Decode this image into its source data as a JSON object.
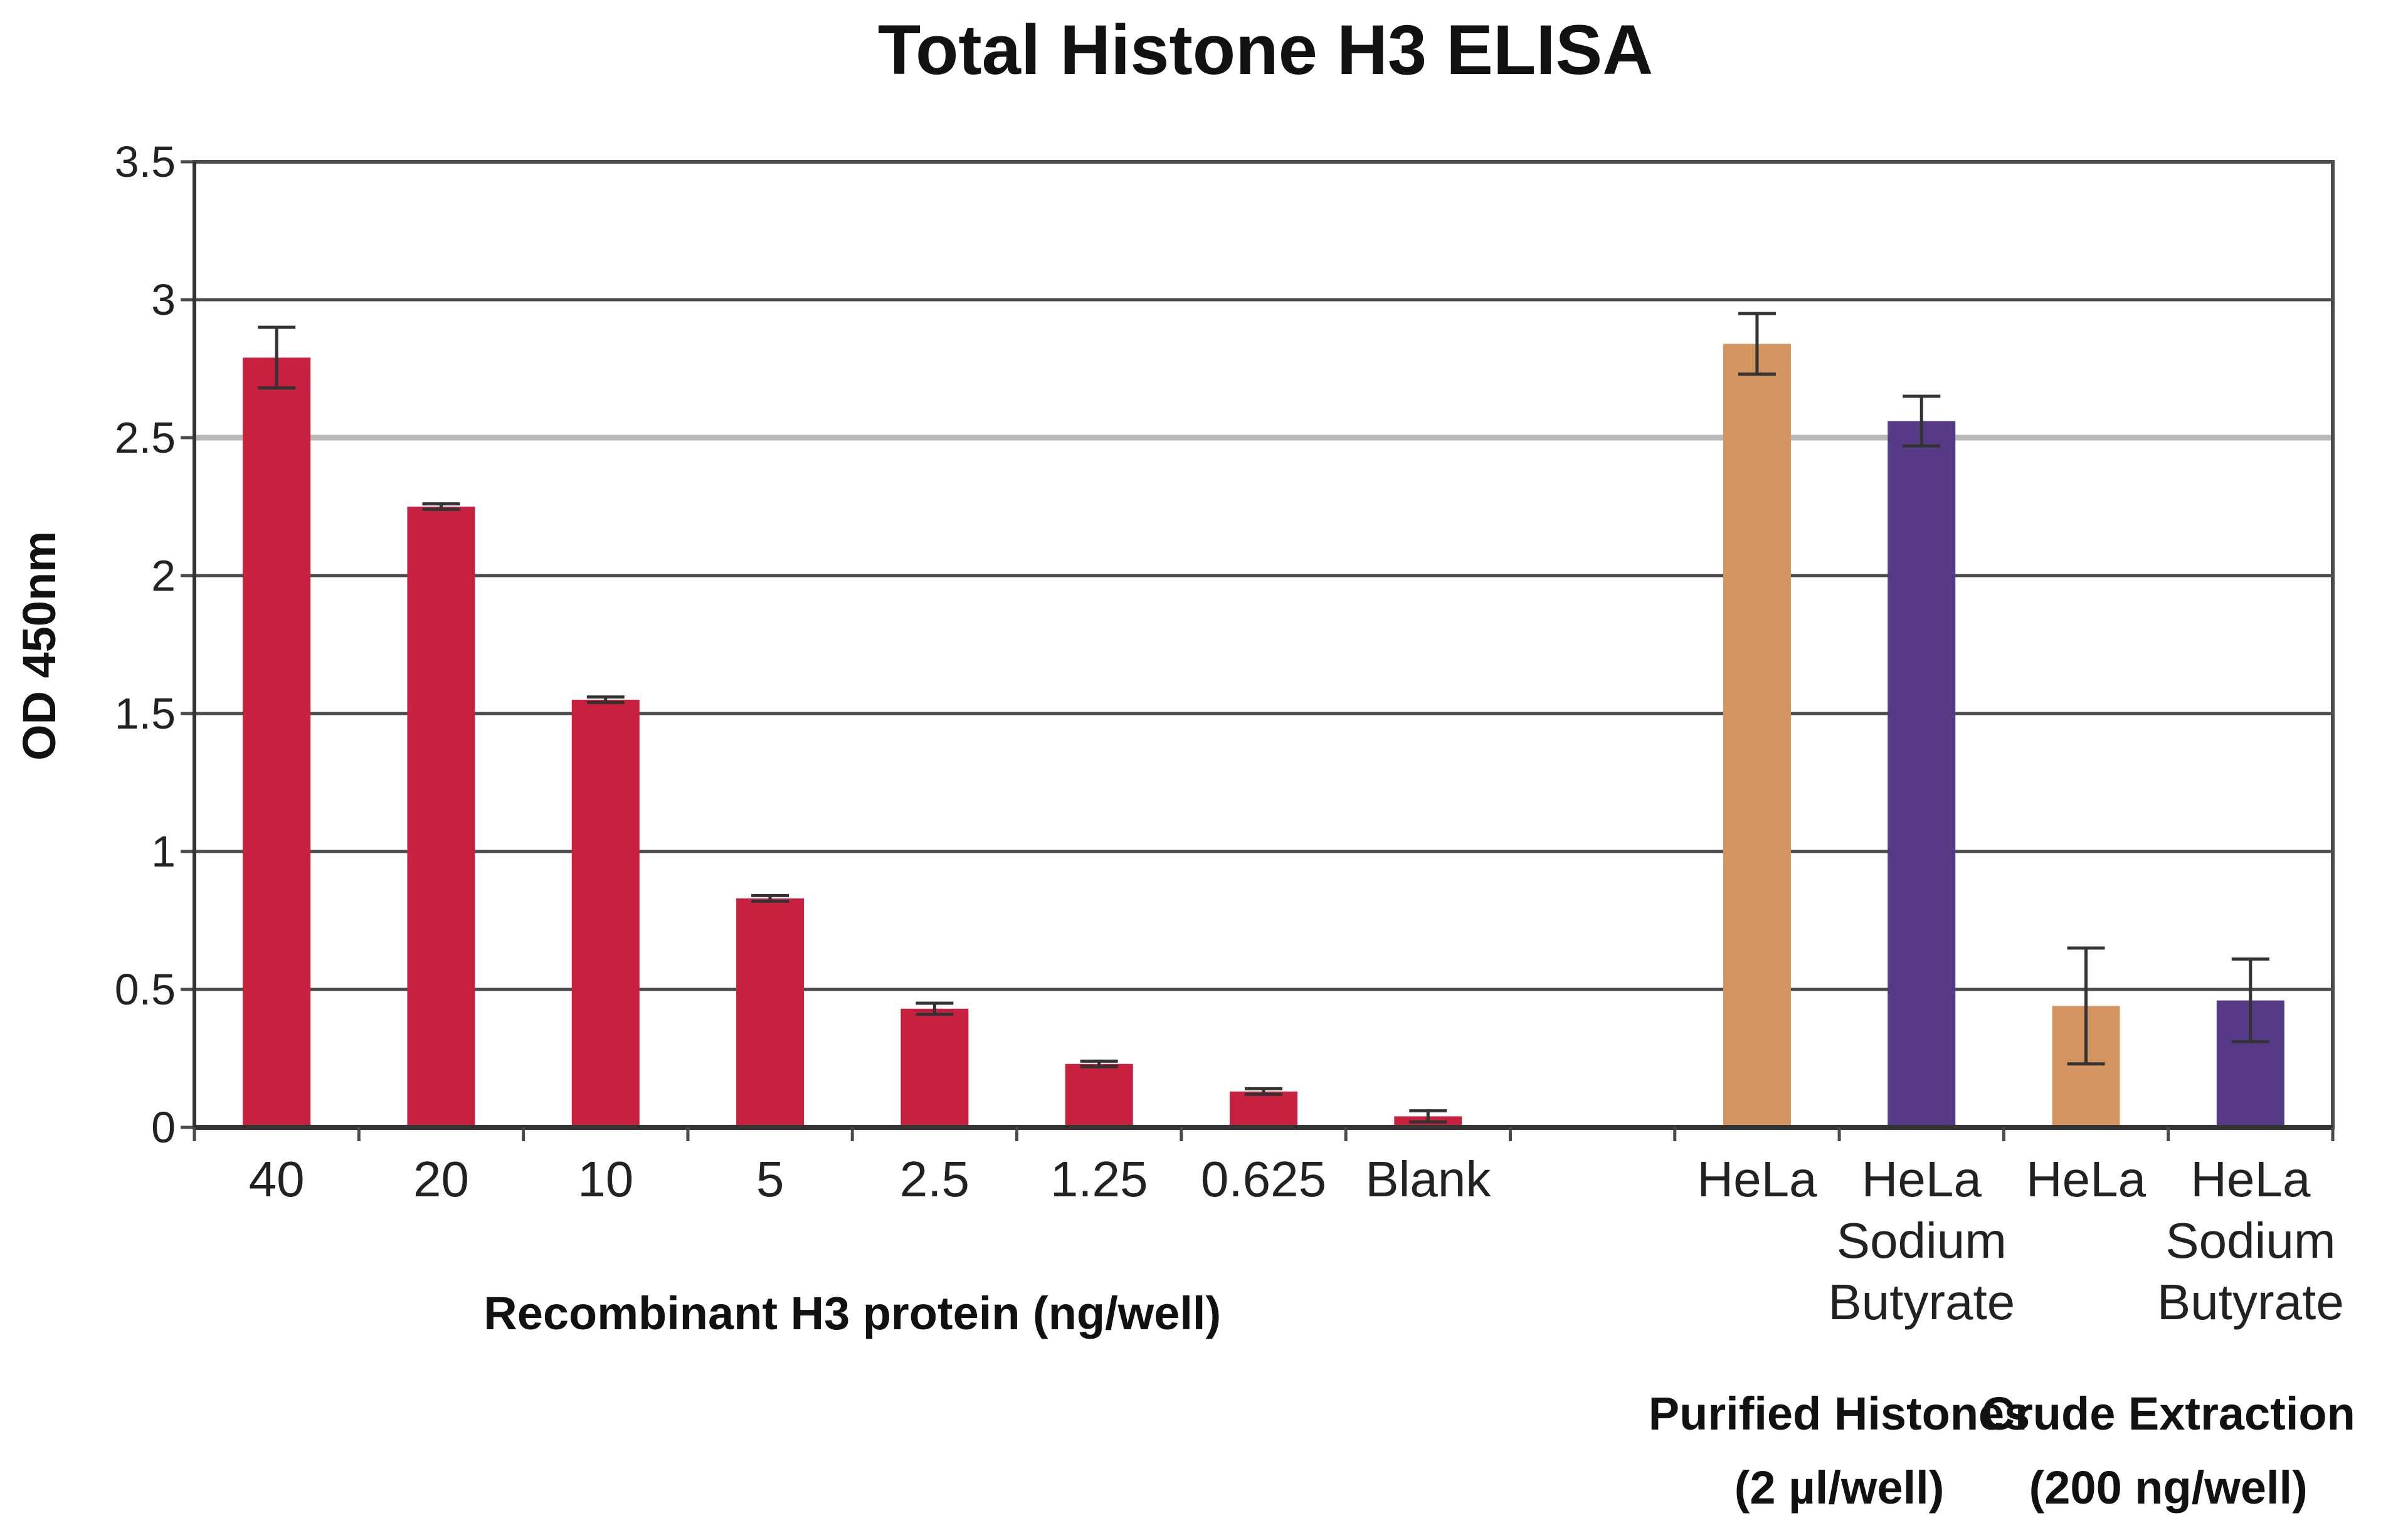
{
  "chart_data": {
    "type": "bar",
    "title": "Total Histone H3 ELISA",
    "ylabel": "OD 450nm",
    "ylim": [
      0,
      3.5
    ],
    "yticks": [
      "0",
      "0.5",
      "1",
      "1.5",
      "2",
      "2.5",
      "3",
      "3.5"
    ],
    "grid": true,
    "categories": [
      [
        "40"
      ],
      [
        "20"
      ],
      [
        "10"
      ],
      [
        "5"
      ],
      [
        "2.5"
      ],
      [
        "1.25"
      ],
      [
        "0.625"
      ],
      [
        "Blank"
      ],
      [],
      [
        "HeLa"
      ],
      [
        "HeLa",
        "Sodium",
        "Butyrate"
      ],
      [
        "HeLa"
      ],
      [
        "HeLa",
        "Sodium",
        "Butyrate"
      ]
    ],
    "values": [
      2.79,
      2.25,
      1.55,
      0.83,
      0.43,
      0.23,
      0.13,
      0.04,
      null,
      2.84,
      2.56,
      0.44,
      0.46
    ],
    "errors": [
      0.11,
      0.01,
      0.01,
      0.01,
      0.02,
      0.01,
      0.01,
      0.02,
      null,
      0.11,
      0.09,
      0.21,
      0.15
    ],
    "colors": [
      "#c8203f",
      "#c8203f",
      "#c8203f",
      "#c8203f",
      "#c8203f",
      "#c8203f",
      "#c8203f",
      "#c8203f",
      null,
      "#d49561",
      "#563a88",
      "#d49561",
      "#563a88"
    ],
    "groups": [
      {
        "label": [
          "Recombinant H3 protein (ng/well)"
        ],
        "from": 0,
        "to": 7
      },
      {
        "label": [
          "Purified Histones",
          "(2 µl/well)"
        ],
        "from": 9,
        "to": 10
      },
      {
        "label": [
          "Crude Extraction",
          "(200 ng/well)"
        ],
        "from": 11,
        "to": 12
      }
    ]
  }
}
